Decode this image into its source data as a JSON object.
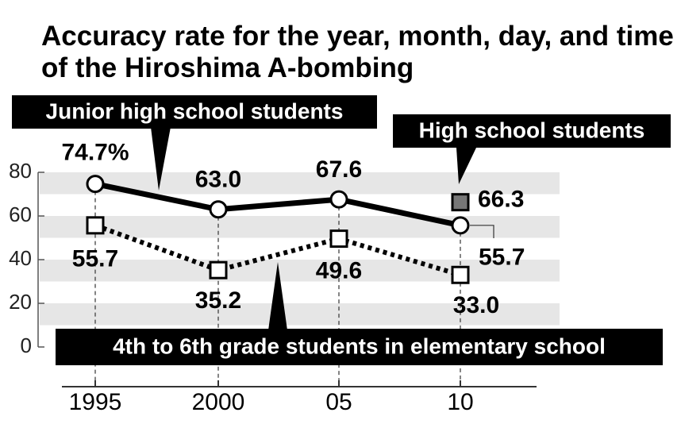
{
  "chart_data": {
    "type": "line",
    "title": "Accuracy rate for the year, month, day, and time of the Hiroshima A-bombing",
    "categories": [
      "1995",
      "2000",
      "05",
      "10"
    ],
    "series": [
      {
        "name": "Junior high school students",
        "color": "#000000",
        "marker": "circle",
        "dash": false,
        "values": [
          74.7,
          63.0,
          67.6,
          55.7
        ],
        "value_labels": [
          "74.7%",
          "63.0",
          "67.6",
          "55.7"
        ]
      },
      {
        "name": "4th to 6th grade students in elementary school",
        "color": "#000000",
        "marker": "square",
        "dash": true,
        "values": [
          55.7,
          35.2,
          49.6,
          33.0
        ],
        "value_labels": [
          "55.7",
          "35.2",
          "49.6",
          "33.0"
        ]
      },
      {
        "name": "High school students",
        "color": "#777777",
        "marker": "square-filled",
        "dash": false,
        "values": [
          null,
          null,
          null,
          66.3
        ],
        "value_labels": [
          null,
          null,
          null,
          "66.3"
        ]
      }
    ],
    "ylim": [
      0,
      80
    ],
    "yticks": [
      0,
      20,
      40,
      60,
      80
    ],
    "grid": true
  }
}
